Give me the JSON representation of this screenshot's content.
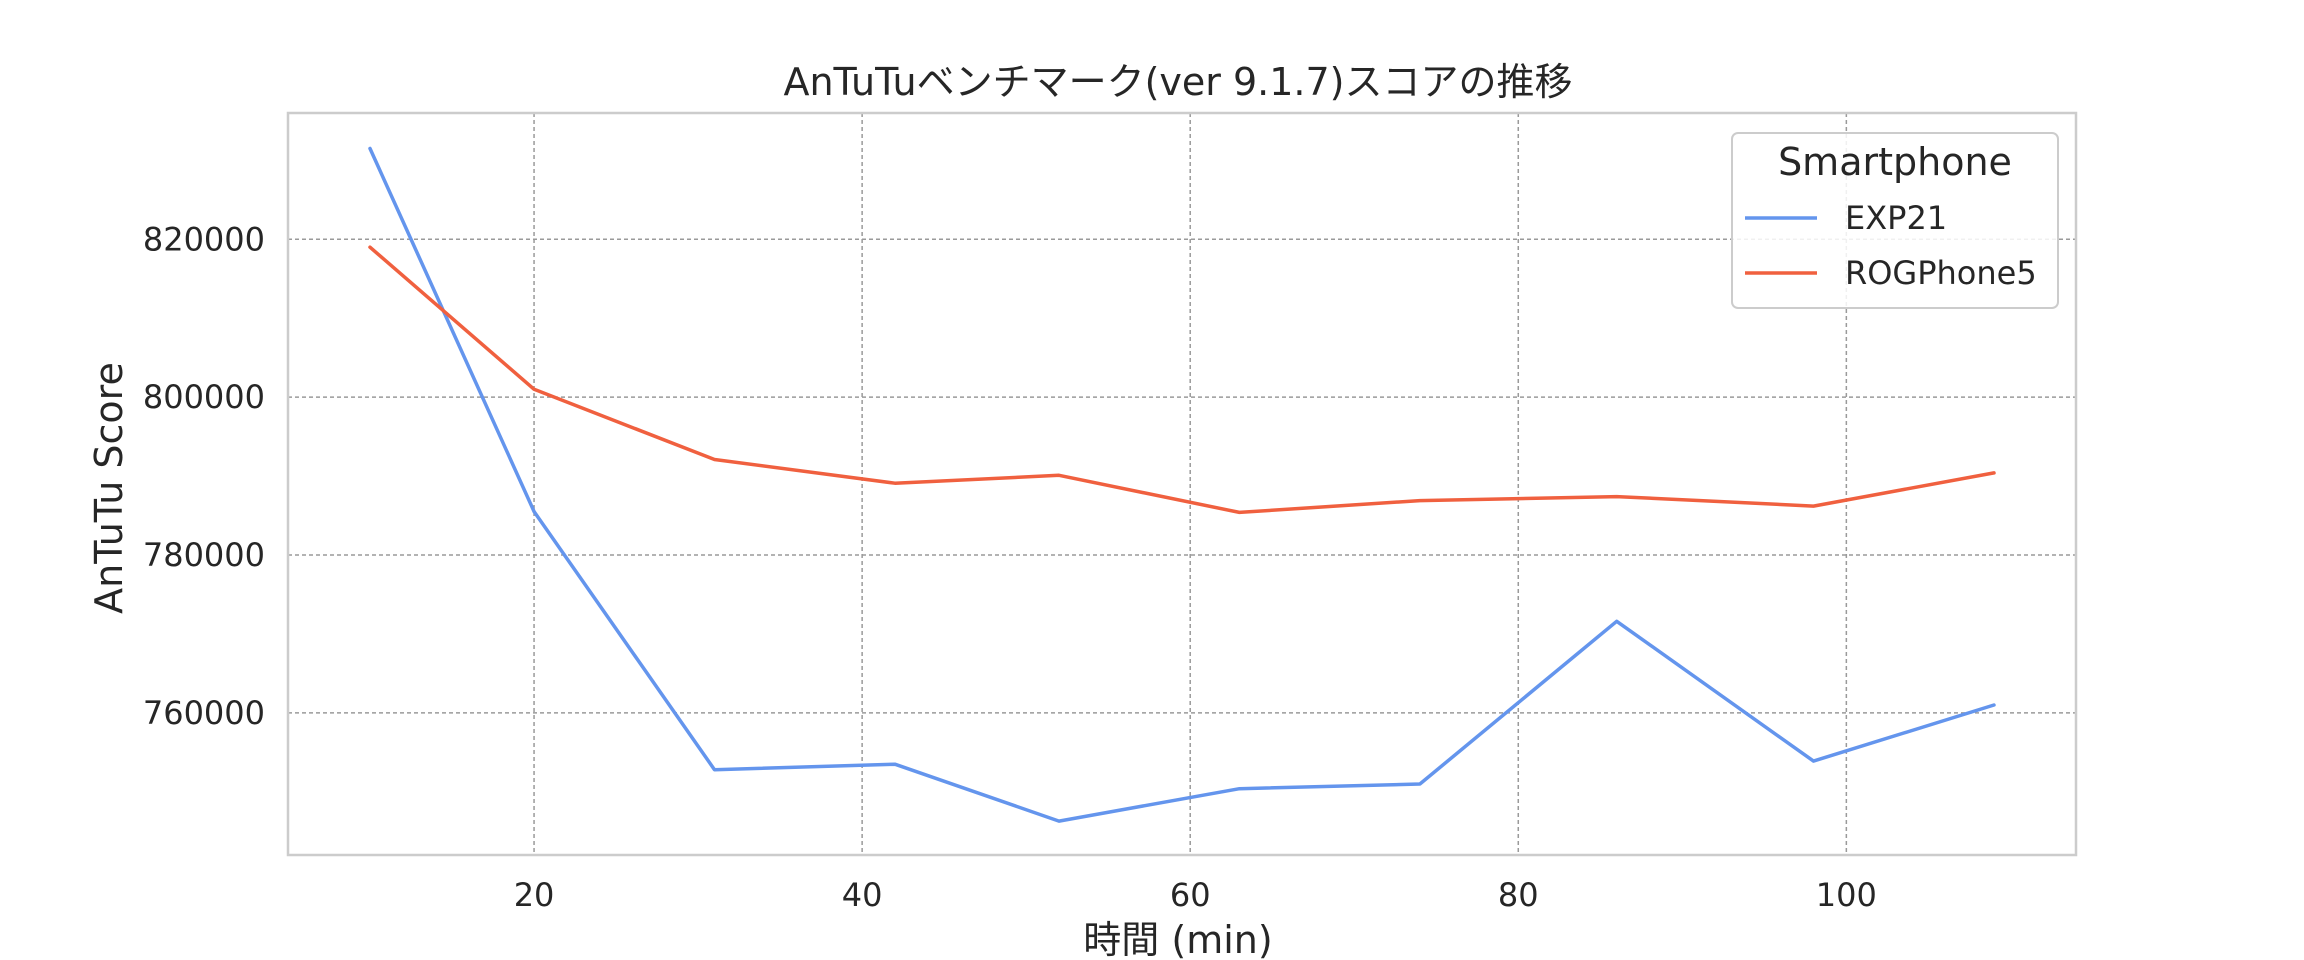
{
  "chart_data": {
    "type": "line",
    "title": "AnTuTuベンチマーク(ver 9.1.7)スコアの推移",
    "xlabel": "時間 (min)",
    "ylabel": "AnTuTu Score",
    "xlim": [
      5,
      114
    ],
    "ylim": [
      742000,
      836000
    ],
    "xticks": [
      20,
      40,
      60,
      80,
      100
    ],
    "yticks": [
      760000,
      780000,
      800000,
      820000
    ],
    "grid": true,
    "legend": {
      "title": "Smartphone",
      "position": "top-right"
    },
    "series": [
      {
        "name": "EXP21",
        "color": "#6495ED",
        "x": [
          10,
          20,
          31,
          42,
          52,
          63,
          74,
          86,
          98,
          109
        ],
        "values": [
          831500,
          785500,
          752800,
          753500,
          746300,
          750400,
          751000,
          771600,
          753900,
          761000
        ]
      },
      {
        "name": "ROGPhone5",
        "color": "#F0603F",
        "x": [
          10,
          20,
          31,
          42,
          52,
          63,
          74,
          86,
          98,
          109
        ],
        "values": [
          819000,
          801000,
          792100,
          789100,
          790100,
          785400,
          786900,
          787400,
          786200,
          790400
        ]
      }
    ]
  }
}
